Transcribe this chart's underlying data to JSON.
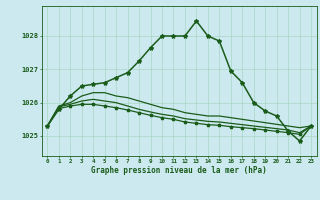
{
  "title": "Graphe pression niveau de la mer (hPa)",
  "background_color": "#cde9f0",
  "grid_color": "#a8d5c2",
  "line_color": "#1a5c1a",
  "x_labels": [
    "0",
    "1",
    "2",
    "3",
    "4",
    "5",
    "6",
    "7",
    "8",
    "9",
    "10",
    "11",
    "12",
    "13",
    "14",
    "15",
    "16",
    "17",
    "18",
    "19",
    "20",
    "21",
    "22",
    "23"
  ],
  "ylim": [
    1024.4,
    1028.9
  ],
  "yticks": [
    1025,
    1026,
    1027,
    1028
  ],
  "series": {
    "main": [
      1025.3,
      1025.8,
      1026.2,
      1026.5,
      1026.55,
      1026.6,
      1026.75,
      1026.9,
      1027.25,
      1027.65,
      1028.0,
      1028.0,
      1028.0,
      1028.45,
      1028.0,
      1027.85,
      1026.95,
      1026.6,
      1026.0,
      1025.75,
      1025.6,
      1025.15,
      1024.85,
      1025.3
    ],
    "flat1": [
      1025.3,
      1025.9,
      1026.0,
      1026.2,
      1026.3,
      1026.3,
      1026.2,
      1026.15,
      1026.05,
      1025.95,
      1025.85,
      1025.8,
      1025.7,
      1025.65,
      1025.6,
      1025.6,
      1025.55,
      1025.5,
      1025.45,
      1025.4,
      1025.35,
      1025.3,
      1025.25,
      1025.3
    ],
    "flat2": [
      1025.3,
      1025.88,
      1025.95,
      1026.05,
      1026.1,
      1026.05,
      1026.0,
      1025.9,
      1025.8,
      1025.72,
      1025.65,
      1025.6,
      1025.52,
      1025.48,
      1025.44,
      1025.42,
      1025.38,
      1025.34,
      1025.3,
      1025.26,
      1025.22,
      1025.18,
      1025.1,
      1025.3
    ],
    "flat3": [
      1025.3,
      1025.82,
      1025.9,
      1025.95,
      1025.95,
      1025.9,
      1025.85,
      1025.78,
      1025.7,
      1025.62,
      1025.55,
      1025.5,
      1025.42,
      1025.38,
      1025.34,
      1025.32,
      1025.28,
      1025.25,
      1025.22,
      1025.18,
      1025.14,
      1025.1,
      1025.05,
      1025.3
    ]
  }
}
